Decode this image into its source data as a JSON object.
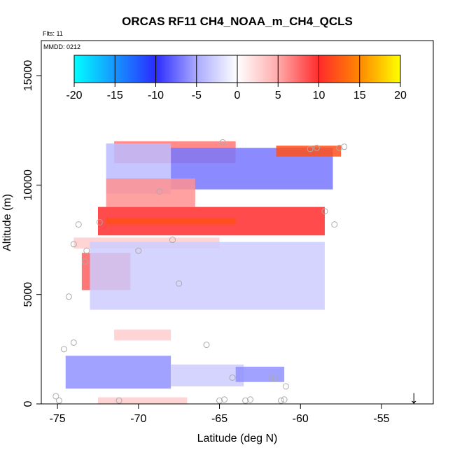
{
  "chart_data": {
    "type": "heatmap",
    "title": "ORCAS RF11 CH4_NOAA_m_CH4_QCLS",
    "flights_note": "Flts: 11",
    "date_note": "MMDD: 0212",
    "xlabel": "Latitude (deg N)",
    "ylabel": "Altitude (m)",
    "xlim": [
      -76,
      -51.8
    ],
    "ylim": [
      0,
      16600
    ],
    "x_ticks": [
      -75,
      -70,
      -65,
      -60,
      -55
    ],
    "x_tick_labels": [
      "-75",
      "-70",
      "-65",
      "-60",
      "-55"
    ],
    "y_ticks": [
      0,
      5000,
      10000,
      15000
    ],
    "y_tick_labels": [
      "0",
      "5000",
      "10000",
      "15000"
    ],
    "colorbar": {
      "range": [
        -20,
        20
      ],
      "ticks": [
        -20,
        -15,
        -10,
        -5,
        0,
        5,
        10,
        15,
        20
      ],
      "tick_labels": [
        "-20",
        "-15",
        "-10",
        "-5",
        "0",
        "5",
        "10",
        "15",
        "20"
      ],
      "stops": [
        {
          "value": -20,
          "color": "#00ffff"
        },
        {
          "value": -10,
          "color": "#2b2bff"
        },
        {
          "value": -5,
          "color": "#aaaaff"
        },
        {
          "value": 0,
          "color": "#ffffff"
        },
        {
          "value": 5,
          "color": "#ffaaaa"
        },
        {
          "value": 10,
          "color": "#ff2b2b"
        },
        {
          "value": 15,
          "color": "#ff8800"
        },
        {
          "value": 20,
          "color": "#ffff00"
        }
      ]
    },
    "regions": [
      {
        "name": "upper-red-cap",
        "lat_range": [
          -71.5,
          -64.0
        ],
        "alt_range": [
          11000,
          12000
        ],
        "value": 7
      },
      {
        "name": "upper-blue-v-left",
        "lat_range": [
          -72.0,
          -68.0
        ],
        "alt_range": [
          9600,
          11900
        ],
        "value": -4
      },
      {
        "name": "upper-blue-band",
        "lat_range": [
          -68.0,
          -58.0
        ],
        "alt_range": [
          9800,
          11700
        ],
        "value": -7
      },
      {
        "name": "upper-mixed-tail",
        "lat_range": [
          -61.5,
          -57.5
        ],
        "alt_range": [
          11300,
          11800
        ],
        "value": 12
      },
      {
        "name": "main-red-band",
        "lat_range": [
          -72.5,
          -58.5
        ],
        "alt_range": [
          7700,
          9000
        ],
        "value": 10
      },
      {
        "name": "main-red-core",
        "lat_range": [
          -72.0,
          -64.0
        ],
        "alt_range": [
          8200,
          8500
        ],
        "value": 12
      },
      {
        "name": "main-red-upper-wedge",
        "lat_range": [
          -72.0,
          -66.5
        ],
        "alt_range": [
          9000,
          10300
        ],
        "value": 6
      },
      {
        "name": "mid-red-patch",
        "lat_range": [
          -73.5,
          -70.5
        ],
        "alt_range": [
          5200,
          6900
        ],
        "value": 8
      },
      {
        "name": "mid-pink-strip",
        "lat_range": [
          -74.0,
          -65.0
        ],
        "alt_range": [
          7100,
          7600
        ],
        "value": 3
      },
      {
        "name": "mid-blue-diagonal",
        "lat_range": [
          -73.0,
          -58.5
        ],
        "alt_range": [
          4300,
          7400
        ],
        "value": -3
      },
      {
        "name": "low-pink-patch",
        "lat_range": [
          -71.5,
          -68.0
        ],
        "alt_range": [
          2900,
          3400
        ],
        "value": 3
      },
      {
        "name": "low-blue-block",
        "lat_range": [
          -74.5,
          -68.0
        ],
        "alt_range": [
          700,
          2200
        ],
        "value": -6
      },
      {
        "name": "low-blue-wedge",
        "lat_range": [
          -68.0,
          -63.5
        ],
        "alt_range": [
          800,
          1800
        ],
        "value": -3
      },
      {
        "name": "near-surface-blue",
        "lat_range": [
          -64.0,
          -61.0
        ],
        "alt_range": [
          1000,
          1700
        ],
        "value": -6
      },
      {
        "name": "surface-pink",
        "lat_range": [
          -72.5,
          -67.0
        ],
        "alt_range": [
          0,
          300
        ],
        "value": 3
      }
    ],
    "sample_points": [
      {
        "lat": -64.8,
        "alt": 11950
      },
      {
        "lat": -59.4,
        "alt": 11650
      },
      {
        "lat": -59.0,
        "alt": 11700
      },
      {
        "lat": -57.6,
        "alt": 11700
      },
      {
        "lat": -57.3,
        "alt": 11750
      },
      {
        "lat": -68.7,
        "alt": 9700
      },
      {
        "lat": -58.5,
        "alt": 8800
      },
      {
        "lat": -57.9,
        "alt": 8200
      },
      {
        "lat": -73.7,
        "alt": 8200
      },
      {
        "lat": -72.4,
        "alt": 8300
      },
      {
        "lat": -74.0,
        "alt": 7300
      },
      {
        "lat": -67.9,
        "alt": 7500
      },
      {
        "lat": -73.2,
        "alt": 7000
      },
      {
        "lat": -70.0,
        "alt": 7000
      },
      {
        "lat": -73.3,
        "alt": 6500
      },
      {
        "lat": -67.5,
        "alt": 5500
      },
      {
        "lat": -74.3,
        "alt": 4900
      },
      {
        "lat": -74.6,
        "alt": 2500
      },
      {
        "lat": -65.8,
        "alt": 2700
      },
      {
        "lat": -74.0,
        "alt": 2800
      },
      {
        "lat": -64.2,
        "alt": 1200
      },
      {
        "lat": -61.8,
        "alt": 1200
      },
      {
        "lat": -61.6,
        "alt": 1150
      },
      {
        "lat": -60.9,
        "alt": 800
      },
      {
        "lat": -75.1,
        "alt": 350
      },
      {
        "lat": -74.9,
        "alt": 150
      },
      {
        "lat": -71.2,
        "alt": 150
      },
      {
        "lat": -65.0,
        "alt": 150
      },
      {
        "lat": -64.7,
        "alt": 200
      },
      {
        "lat": -63.4,
        "alt": 150
      },
      {
        "lat": -63.1,
        "alt": 200
      },
      {
        "lat": -61.2,
        "alt": 150
      },
      {
        "lat": -61.0,
        "alt": 200
      }
    ],
    "marker": {
      "symbol": "↓",
      "lat": -53.0
    }
  }
}
